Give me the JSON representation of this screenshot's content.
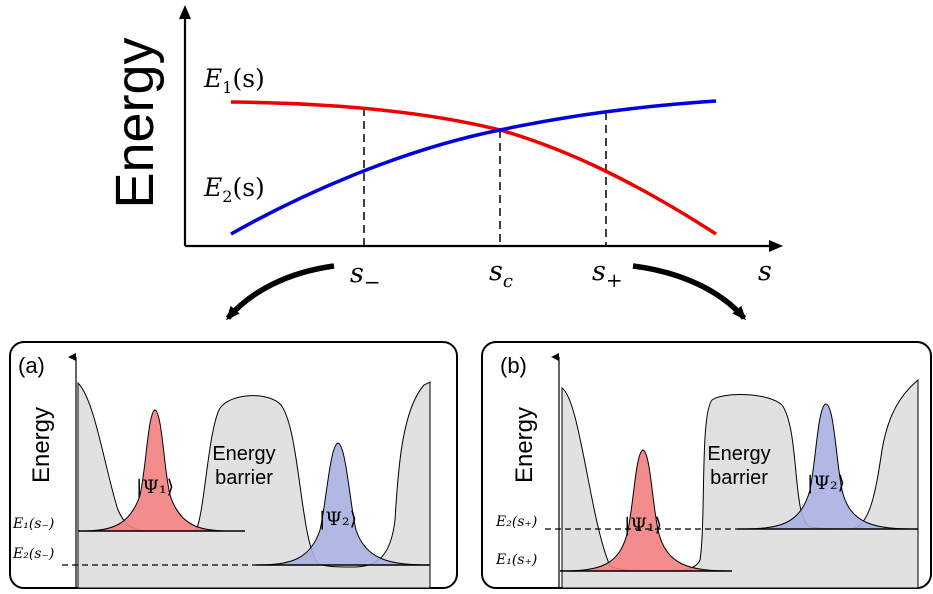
{
  "top_plot": {
    "y_axis_label": "Energy",
    "curve_e1_label": "E",
    "curve_e1_sub": "1",
    "curve_e1_arg": "(s)",
    "curve_e2_label": "E",
    "curve_e2_sub": "2",
    "curve_e2_arg": "(s)",
    "x_axis_label": "s",
    "tick_s_minus": "s",
    "tick_s_minus_sub": "−",
    "tick_s_c": "s",
    "tick_s_c_sub": "c",
    "tick_s_plus": "s",
    "tick_s_plus_sub": "+",
    "colors": {
      "e1": "#ee0000",
      "e2": "#0000dd"
    }
  },
  "panel_a": {
    "tag": "(a)",
    "y_axis_label": "Energy",
    "barrier_line1": "Energy",
    "barrier_line2": "barrier",
    "psi1_label": "|Ψ₁⟩",
    "psi2_label": "|Ψ₂⟩",
    "level_upper_label": "E₁(s₋)",
    "level_lower_label": "E₂(s₋)",
    "colors": {
      "psi1": "#f28080",
      "psi2": "#a7b0e0",
      "background": "#e1e1e1"
    }
  },
  "panel_b": {
    "tag": "(b)",
    "y_axis_label": "Energy",
    "barrier_line1": "Energy",
    "barrier_line2": "barrier",
    "psi1_label": "|Ψ₁⟩",
    "psi2_label": "|Ψ₂⟩",
    "level_upper_label": "E₂(s₊)",
    "level_lower_label": "E₁(s₊)",
    "colors": {
      "psi1": "#f28080",
      "psi2": "#a7b0e0",
      "background": "#e1e1e1"
    }
  }
}
